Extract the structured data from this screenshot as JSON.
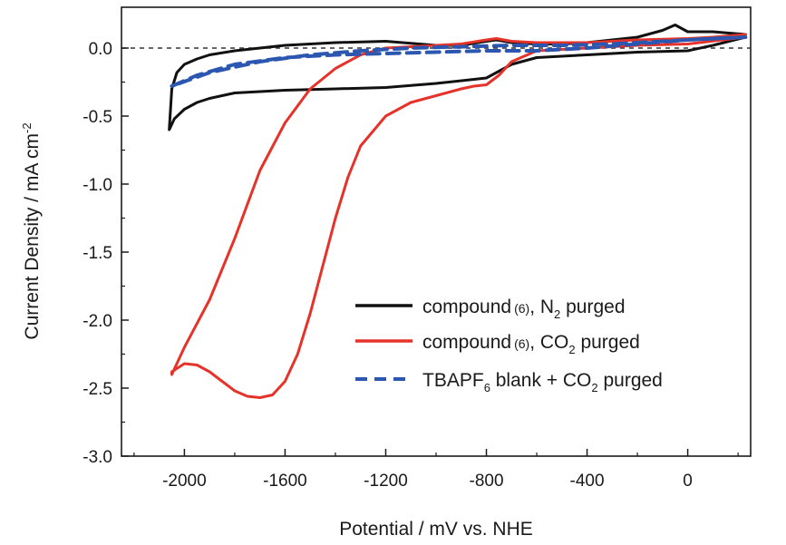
{
  "chart_data": {
    "type": "line",
    "title": "",
    "xlabel": "Potential / mV vs. NHE",
    "ylabel": "Current Density / mA cm",
    "ylabel_sup": "-2",
    "xlim": [
      -2250,
      250
    ],
    "ylim": [
      -3.0,
      0.3
    ],
    "xticks": [
      -2000,
      -1600,
      -1200,
      -800,
      -400,
      0
    ],
    "xtick_labels": [
      "-2000",
      "-1600",
      "-1200",
      "-800",
      "-400",
      "0"
    ],
    "yticks": [
      0.0,
      -0.5,
      -1.0,
      -1.5,
      -2.0,
      -2.5,
      -3.0
    ],
    "ytick_labels": [
      "0.0",
      "-0.5",
      "-1.0",
      "-1.5",
      "-2.0",
      "-2.5",
      "-3.0"
    ],
    "zero_line": true,
    "legend_position": "bottom-right",
    "series": [
      {
        "name": "compound (6), N2 purged",
        "color": "#111111",
        "dash": "solid",
        "x": [
          230,
          100,
          0,
          -50,
          -100,
          -200,
          -300,
          -400,
          -500,
          -600,
          -700,
          -760,
          -800,
          -900,
          -1000,
          -1200,
          -1400,
          -1600,
          -1800,
          -1900,
          -1950,
          -2000,
          -2030,
          -2050,
          -2060,
          -2040,
          -2000,
          -1950,
          -1900,
          -1800,
          -1700,
          -1600,
          -1400,
          -1200,
          -1000,
          -800,
          -700,
          -600,
          -400,
          -200,
          0,
          100,
          230
        ],
        "y": [
          0.1,
          0.12,
          0.12,
          0.17,
          0.13,
          0.08,
          0.06,
          0.04,
          0.03,
          0.03,
          0.04,
          0.06,
          0.05,
          0.02,
          0.02,
          0.05,
          0.04,
          0.02,
          -0.02,
          -0.05,
          -0.08,
          -0.12,
          -0.18,
          -0.3,
          -0.6,
          -0.52,
          -0.45,
          -0.4,
          -0.37,
          -0.33,
          -0.32,
          -0.31,
          -0.3,
          -0.29,
          -0.26,
          -0.22,
          -0.12,
          -0.07,
          -0.05,
          -0.03,
          -0.02,
          0.02,
          0.08
        ]
      },
      {
        "name": "compound (6), CO2 purged",
        "color": "#e5332a",
        "dash": "solid",
        "x": [
          230,
          100,
          0,
          -200,
          -400,
          -500,
          -600,
          -700,
          -760,
          -800,
          -900,
          -1000,
          -1100,
          -1200,
          -1300,
          -1400,
          -1500,
          -1600,
          -1700,
          -1800,
          -1900,
          -2000,
          -2050,
          -2050,
          -2000,
          -1950,
          -1900,
          -1850,
          -1800,
          -1750,
          -1700,
          -1650,
          -1600,
          -1550,
          -1500,
          -1450,
          -1400,
          -1350,
          -1300,
          -1200,
          -1100,
          -1000,
          -900,
          -850,
          -800,
          -750,
          -700,
          -600,
          -400,
          -200,
          0,
          230
        ],
        "y": [
          0.1,
          0.08,
          0.07,
          0.06,
          0.04,
          0.04,
          0.04,
          0.05,
          0.07,
          0.06,
          0.03,
          0.02,
          0.01,
          0.0,
          -0.05,
          -0.15,
          -0.3,
          -0.55,
          -0.9,
          -1.4,
          -1.85,
          -2.2,
          -2.4,
          -2.38,
          -2.32,
          -2.33,
          -2.38,
          -2.45,
          -2.52,
          -2.56,
          -2.57,
          -2.55,
          -2.45,
          -2.25,
          -1.95,
          -1.6,
          -1.25,
          -0.95,
          -0.72,
          -0.5,
          -0.4,
          -0.35,
          -0.3,
          -0.28,
          -0.27,
          -0.2,
          -0.1,
          -0.02,
          0.0,
          0.02,
          0.03,
          0.08
        ]
      },
      {
        "name": "TBAPF6 blank + CO2 purged",
        "color": "#2c57b0",
        "dash": "dashed",
        "x": [
          -2050,
          -1950,
          -1800,
          -1600,
          -1400,
          -1200,
          -1000,
          -800,
          -600,
          -400,
          -200,
          0,
          230,
          100,
          -100,
          -300,
          -500,
          -700,
          -900,
          -1100,
          -1300,
          -1500,
          -1700,
          -1900,
          -2050
        ],
        "y": [
          -0.28,
          -0.2,
          -0.12,
          -0.07,
          -0.05,
          -0.04,
          -0.03,
          -0.02,
          -0.02,
          0.0,
          0.03,
          0.06,
          0.08,
          0.07,
          0.05,
          0.03,
          0.02,
          0.02,
          0.01,
          0.0,
          -0.02,
          -0.05,
          -0.1,
          -0.18,
          -0.28
        ]
      }
    ]
  },
  "legend": {
    "items": [
      {
        "prefix": "compound",
        "small": "(6)",
        "main": ", N",
        "sub": "2",
        "suffix": " purged"
      },
      {
        "prefix": "compound",
        "small": "(6)",
        "main": ", CO",
        "sub": "2",
        "suffix": " purged"
      },
      {
        "prefix": "TBAPF",
        "small": "",
        "main": "",
        "sub": "6",
        "suffix": " blank + CO",
        "sub2": "2",
        "suffix2": " purged"
      }
    ]
  }
}
